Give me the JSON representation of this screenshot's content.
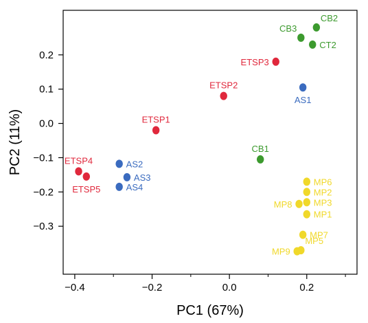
{
  "chart_data": {
    "type": "scatter",
    "xlabel": "PC1 (67%)",
    "ylabel": "PC2 (11%)",
    "xlim": [
      -0.43,
      0.33
    ],
    "ylim": [
      -0.44,
      0.33
    ],
    "xticks": [
      -0.4,
      -0.2,
      0.0,
      0.2
    ],
    "xtick_labels": [
      "−0.4",
      "−0.2",
      "0.0",
      "0.2"
    ],
    "yticks": [
      -0.3,
      -0.2,
      -0.1,
      0.0,
      0.1,
      0.2
    ],
    "ytick_labels": [
      "−0.3",
      "−0.2",
      "−0.1",
      "0.0",
      "0.1",
      "0.2"
    ],
    "minor_ticks": true,
    "grid": false,
    "colors": {
      "red": "#e0283c",
      "blue": "#3a6bbf",
      "green": "#3c9a2e",
      "yellow": "#f0d82a"
    },
    "points": [
      {
        "label": "ETSP1",
        "x": -0.19,
        "y": -0.02,
        "color": "red",
        "label_pos": "above"
      },
      {
        "label": "ETSP2",
        "x": -0.015,
        "y": 0.08,
        "color": "red",
        "label_pos": "above"
      },
      {
        "label": "ETSP3",
        "x": 0.12,
        "y": 0.18,
        "color": "red",
        "label_pos": "left"
      },
      {
        "label": "ETSP4",
        "x": -0.39,
        "y": -0.14,
        "color": "red",
        "label_pos": "above"
      },
      {
        "label": "ETSP5",
        "x": -0.37,
        "y": -0.155,
        "color": "red",
        "label_pos": "below"
      },
      {
        "label": "AS1",
        "x": 0.19,
        "y": 0.105,
        "color": "blue",
        "label_pos": "below"
      },
      {
        "label": "AS2",
        "x": -0.285,
        "y": -0.118,
        "color": "blue",
        "label_pos": "right"
      },
      {
        "label": "AS3",
        "x": -0.265,
        "y": -0.157,
        "color": "blue",
        "label_pos": "right"
      },
      {
        "label": "AS4",
        "x": -0.285,
        "y": -0.185,
        "color": "blue",
        "label_pos": "right"
      },
      {
        "label": "CB1",
        "x": 0.08,
        "y": -0.105,
        "color": "green",
        "label_pos": "above"
      },
      {
        "label": "CB2",
        "x": 0.225,
        "y": 0.28,
        "color": "green",
        "label_pos": "above-right"
      },
      {
        "label": "CB3",
        "x": 0.185,
        "y": 0.25,
        "color": "green",
        "label_pos": "above-left"
      },
      {
        "label": "CT2",
        "x": 0.215,
        "y": 0.23,
        "color": "green",
        "label_pos": "right"
      },
      {
        "label": "MP1",
        "x": 0.2,
        "y": -0.265,
        "color": "yellow",
        "label_pos": "right"
      },
      {
        "label": "MP2",
        "x": 0.2,
        "y": -0.2,
        "color": "yellow",
        "label_pos": "right"
      },
      {
        "label": "MP3",
        "x": 0.2,
        "y": -0.23,
        "color": "yellow",
        "label_pos": "right"
      },
      {
        "label": "MP5",
        "x": 0.185,
        "y": -0.37,
        "color": "yellow",
        "label_pos": "above-right"
      },
      {
        "label": "MP6",
        "x": 0.2,
        "y": -0.17,
        "color": "yellow",
        "label_pos": "right"
      },
      {
        "label": "MP7",
        "x": 0.19,
        "y": -0.325,
        "color": "yellow",
        "label_pos": "right"
      },
      {
        "label": "MP8",
        "x": 0.18,
        "y": -0.235,
        "color": "yellow",
        "label_pos": "left"
      },
      {
        "label": "MP9",
        "x": 0.175,
        "y": -0.373,
        "color": "yellow",
        "label_pos": "left"
      }
    ]
  }
}
